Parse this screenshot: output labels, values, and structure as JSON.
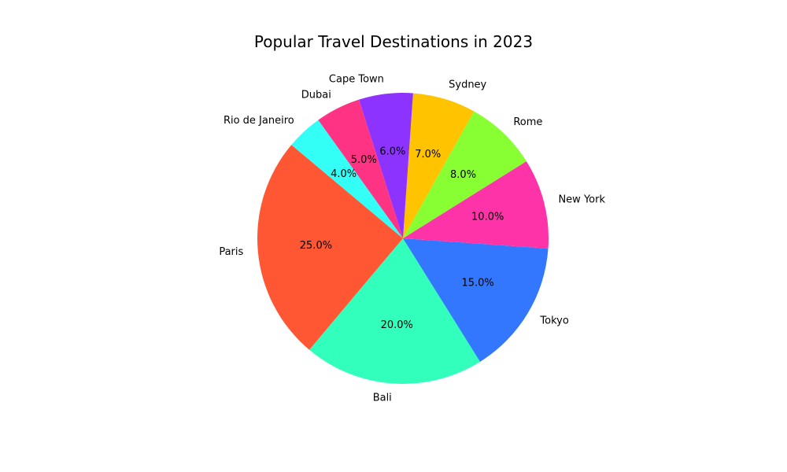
{
  "chart_data": {
    "type": "pie",
    "title": "Popular Travel Destinations in 2023",
    "categories": [
      "Paris",
      "Bali",
      "Tokyo",
      "New York",
      "Rome",
      "Sydney",
      "Cape Town",
      "Dubai",
      "Rio de Janeiro"
    ],
    "values": [
      25,
      20,
      15,
      10,
      8,
      7,
      6,
      5,
      4
    ],
    "percent_labels": [
      "25.0%",
      "20.0%",
      "15.0%",
      "10.0%",
      "8.0%",
      "7.0%",
      "6.0%",
      "5.0%",
      "4.0%"
    ],
    "colors": [
      "#ff5733",
      "#33ffbd",
      "#3377ff",
      "#ff33a8",
      "#87ff33",
      "#ffc300",
      "#8d33ff",
      "#ff3384",
      "#33fff6"
    ],
    "start_angle_deg": 140,
    "direction": "counterclockwise",
    "legend": "none"
  }
}
